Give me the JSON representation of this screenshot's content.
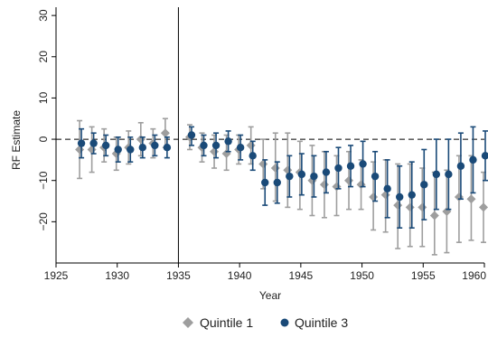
{
  "chart_data": {
    "type": "scatter",
    "xlabel": "Year",
    "ylabel": "RF Estimate",
    "xlim": [
      1925,
      1960
    ],
    "ylim": [
      -30,
      32
    ],
    "xticks": [
      1925,
      1930,
      1935,
      1940,
      1945,
      1950,
      1955,
      1960
    ],
    "yticks": [
      -20,
      -10,
      0,
      10,
      20,
      30
    ],
    "ytick_labels": [
      "−20",
      "−10",
      "0",
      "10",
      "20",
      "30"
    ],
    "xtick_labels": [
      "1925",
      "1930",
      "1935",
      "1940",
      "1945",
      "1950",
      "1955",
      "1960"
    ],
    "reference_hline": 0,
    "reference_vline": 1935,
    "legend_position": "bottom",
    "series": [
      {
        "name": "Quintile 1",
        "color": "#9e9e9e",
        "marker": "diamond",
        "points": [
          {
            "x": 1927,
            "y": -2.5,
            "lo": -9.5,
            "hi": 4.5
          },
          {
            "x": 1928,
            "y": -2.5,
            "lo": -8,
            "hi": 3
          },
          {
            "x": 1929,
            "y": -2,
            "lo": -5.5,
            "hi": 2.5
          },
          {
            "x": 1930,
            "y": -3.5,
            "lo": -7.5,
            "hi": 0.5
          },
          {
            "x": 1931,
            "y": -2,
            "lo": -6,
            "hi": 2
          },
          {
            "x": 1932,
            "y": 0,
            "lo": -4,
            "hi": 4
          },
          {
            "x": 1933,
            "y": -1,
            "lo": -4.5,
            "hi": 2.5
          },
          {
            "x": 1934,
            "y": 1.5,
            "lo": -2,
            "hi": 5
          },
          {
            "x": 1936,
            "y": 0.5,
            "lo": -2.5,
            "hi": 3.5
          },
          {
            "x": 1937,
            "y": -2,
            "lo": -5.5,
            "hi": 1.5
          },
          {
            "x": 1938,
            "y": -3,
            "lo": -7,
            "hi": 1
          },
          {
            "x": 1939,
            "y": -3.5,
            "lo": -7.5,
            "hi": 1
          },
          {
            "x": 1940,
            "y": -2.5,
            "lo": -6,
            "hi": 1
          },
          {
            "x": 1941,
            "y": -1.5,
            "lo": -6,
            "hi": 3
          },
          {
            "x": 1942,
            "y": -6,
            "lo": -12,
            "hi": 0
          },
          {
            "x": 1943,
            "y": -7,
            "lo": -15,
            "hi": 1.5
          },
          {
            "x": 1944,
            "y": -7.5,
            "lo": -16.5,
            "hi": 1.5
          },
          {
            "x": 1945,
            "y": -8,
            "lo": -17,
            "hi": -0.5
          },
          {
            "x": 1946,
            "y": -10,
            "lo": -18.5,
            "hi": -1.5
          },
          {
            "x": 1947,
            "y": -11,
            "lo": -19,
            "hi": -3
          },
          {
            "x": 1948,
            "y": -11.5,
            "lo": -18.5,
            "hi": -4
          },
          {
            "x": 1949,
            "y": -10,
            "lo": -17,
            "hi": -3
          },
          {
            "x": 1950,
            "y": -11,
            "lo": -17,
            "hi": -5
          },
          {
            "x": 1951,
            "y": -14,
            "lo": -22,
            "hi": -5.5
          },
          {
            "x": 1952,
            "y": -13.5,
            "lo": -22.5,
            "hi": -5
          },
          {
            "x": 1953,
            "y": -16,
            "lo": -26.5,
            "hi": -6
          },
          {
            "x": 1954,
            "y": -16.5,
            "lo": -26,
            "hi": -6
          },
          {
            "x": 1955,
            "y": -16.5,
            "lo": -26,
            "hi": -7
          },
          {
            "x": 1956,
            "y": -18.5,
            "lo": -28,
            "hi": -8
          },
          {
            "x": 1957,
            "y": -17.5,
            "lo": -27.5,
            "hi": -7.5
          },
          {
            "x": 1958,
            "y": -14,
            "lo": -25,
            "hi": -4
          },
          {
            "x": 1959,
            "y": -14.5,
            "lo": -24.5,
            "hi": -4
          },
          {
            "x": 1960,
            "y": -16.5,
            "lo": -25,
            "hi": -8
          }
        ]
      },
      {
        "name": "Quintile 3",
        "color": "#1a4a78",
        "marker": "circle",
        "points": [
          {
            "x": 1927,
            "y": -1,
            "lo": -4.5,
            "hi": 2.5
          },
          {
            "x": 1928,
            "y": -1,
            "lo": -3.5,
            "hi": 1.5
          },
          {
            "x": 1929,
            "y": -1.5,
            "lo": -4,
            "hi": 1
          },
          {
            "x": 1930,
            "y": -2.5,
            "lo": -5.5,
            "hi": 0.5
          },
          {
            "x": 1931,
            "y": -2.5,
            "lo": -5.5,
            "hi": 0.5
          },
          {
            "x": 1932,
            "y": -2,
            "lo": -4.5,
            "hi": 0.5
          },
          {
            "x": 1933,
            "y": -1.5,
            "lo": -4,
            "hi": 1
          },
          {
            "x": 1934,
            "y": -2,
            "lo": -4.5,
            "hi": 0.5
          },
          {
            "x": 1936,
            "y": 1,
            "lo": -1.5,
            "hi": 3
          },
          {
            "x": 1937,
            "y": -1.5,
            "lo": -4,
            "hi": 1
          },
          {
            "x": 1938,
            "y": -1.5,
            "lo": -4.5,
            "hi": 1.5
          },
          {
            "x": 1939,
            "y": -0.5,
            "lo": -3,
            "hi": 2
          },
          {
            "x": 1940,
            "y": -2,
            "lo": -5,
            "hi": 1
          },
          {
            "x": 1941,
            "y": -4,
            "lo": -7.5,
            "hi": -0.5
          },
          {
            "x": 1942,
            "y": -10.5,
            "lo": -16,
            "hi": -5
          },
          {
            "x": 1943,
            "y": -10.5,
            "lo": -15.5,
            "hi": -5.5
          },
          {
            "x": 1944,
            "y": -9,
            "lo": -14,
            "hi": -4
          },
          {
            "x": 1945,
            "y": -8.5,
            "lo": -13.5,
            "hi": -3.5
          },
          {
            "x": 1946,
            "y": -9,
            "lo": -14,
            "hi": -4
          },
          {
            "x": 1947,
            "y": -8,
            "lo": -13,
            "hi": -3
          },
          {
            "x": 1948,
            "y": -7,
            "lo": -12,
            "hi": -2
          },
          {
            "x": 1949,
            "y": -6.5,
            "lo": -11.5,
            "hi": -1.5
          },
          {
            "x": 1950,
            "y": -6,
            "lo": -11.5,
            "hi": -0.5
          },
          {
            "x": 1951,
            "y": -9,
            "lo": -15,
            "hi": -3
          },
          {
            "x": 1952,
            "y": -12,
            "lo": -19,
            "hi": -5
          },
          {
            "x": 1953,
            "y": -14,
            "lo": -21.5,
            "hi": -6.5
          },
          {
            "x": 1954,
            "y": -13.5,
            "lo": -21.5,
            "hi": -5.5
          },
          {
            "x": 1955,
            "y": -11,
            "lo": -19.5,
            "hi": -2.5
          },
          {
            "x": 1956,
            "y": -8.5,
            "lo": -17,
            "hi": 0
          },
          {
            "x": 1957,
            "y": -8.5,
            "lo": -17,
            "hi": 0
          },
          {
            "x": 1958,
            "y": -6.5,
            "lo": -14.5,
            "hi": 1.5
          },
          {
            "x": 1959,
            "y": -5,
            "lo": -13,
            "hi": 3
          },
          {
            "x": 1960,
            "y": -4,
            "lo": -10,
            "hi": 2
          }
        ]
      }
    ]
  }
}
